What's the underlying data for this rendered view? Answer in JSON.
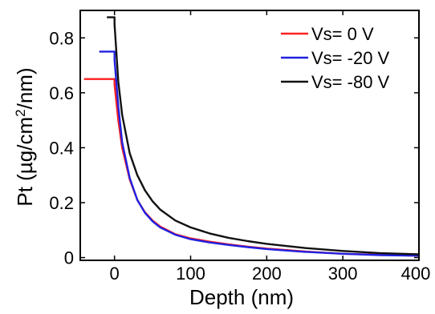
{
  "chart_data": {
    "type": "line",
    "xlabel": "Depth (nm)",
    "ylabel_main": "Pt (µg/cm",
    "ylabel_sup": "2",
    "ylabel_tail": "/nm)",
    "xlim": [
      -45,
      400
    ],
    "ylim": [
      -0.01,
      0.9
    ],
    "xticks": [
      0,
      100,
      200,
      300,
      400
    ],
    "xtick_labels": [
      "0",
      "100",
      "200",
      "300",
      "400"
    ],
    "yticks": [
      0,
      0.2,
      0.4,
      0.6,
      0.8
    ],
    "ytick_labels": [
      "0",
      "0.2",
      "0.4",
      "0.6",
      "0.8"
    ],
    "grid": false,
    "legend_position": "top-right",
    "series": [
      {
        "name": "Vs= 0 V",
        "color": "#ff2020",
        "x": [
          -40,
          0,
          0,
          5,
          10,
          20,
          30,
          40,
          50,
          60,
          80,
          100,
          125,
          150,
          175,
          200,
          250,
          300,
          350,
          400
        ],
        "y": [
          0.65,
          0.65,
          0.63,
          0.5,
          0.4,
          0.285,
          0.21,
          0.165,
          0.135,
          0.113,
          0.085,
          0.07,
          0.058,
          0.048,
          0.04,
          0.033,
          0.022,
          0.014,
          0.01,
          0.007
        ]
      },
      {
        "name": "Vs= -20 V",
        "color": "#2020e0",
        "x": [
          -20,
          0,
          0,
          5,
          10,
          20,
          30,
          40,
          50,
          60,
          80,
          100,
          125,
          150,
          175,
          200,
          250,
          300,
          350,
          400
        ],
        "y": [
          0.75,
          0.75,
          0.72,
          0.55,
          0.42,
          0.29,
          0.21,
          0.163,
          0.132,
          0.11,
          0.083,
          0.067,
          0.055,
          0.046,
          0.038,
          0.031,
          0.021,
          0.014,
          0.009,
          0.007
        ]
      },
      {
        "name": "Vs= -80 V",
        "color": "#111111",
        "x": [
          -10,
          0,
          0,
          5,
          10,
          20,
          30,
          40,
          50,
          60,
          80,
          100,
          125,
          150,
          175,
          200,
          250,
          300,
          350,
          400
        ],
        "y": [
          0.875,
          0.875,
          0.85,
          0.64,
          0.52,
          0.38,
          0.3,
          0.245,
          0.205,
          0.175,
          0.135,
          0.11,
          0.088,
          0.072,
          0.06,
          0.05,
          0.035,
          0.024,
          0.016,
          0.012
        ]
      }
    ]
  }
}
